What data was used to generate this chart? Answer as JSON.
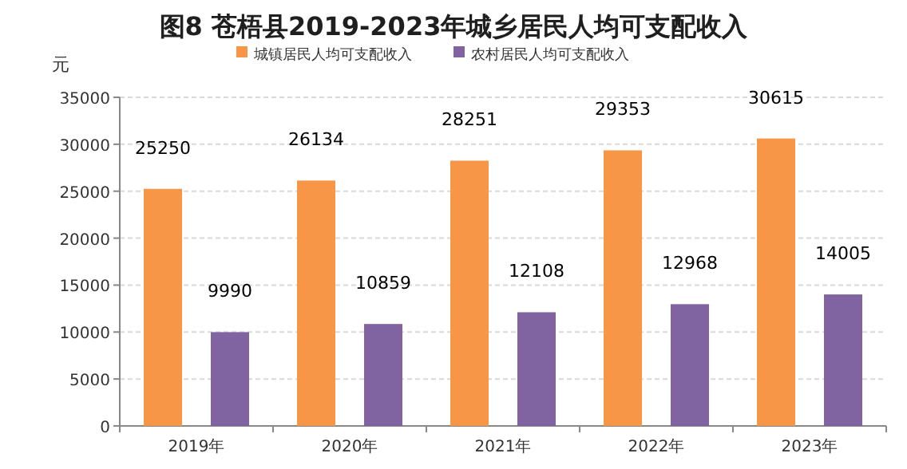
{
  "chart_data": {
    "type": "bar",
    "title": "图8  苍梧县2019-2023年城乡居民人均可支配收入",
    "ylabel": "元",
    "categories": [
      "2019年",
      "2020年",
      "2021年",
      "2022年",
      "2023年"
    ],
    "series": [
      {
        "name": "城镇居民人均可支配收入",
        "color": "#f79646",
        "values": [
          25250,
          26134,
          28251,
          29353,
          30615
        ]
      },
      {
        "name": "农村居民人均可支配收入",
        "color": "#8064a2",
        "values": [
          9990,
          10859,
          12108,
          12968,
          14005
        ]
      }
    ],
    "ylim": [
      0,
      35000
    ],
    "yticks": [
      0,
      5000,
      10000,
      15000,
      20000,
      25000,
      30000,
      35000
    ],
    "grid": "y",
    "legend": "top",
    "data_labels": true
  }
}
